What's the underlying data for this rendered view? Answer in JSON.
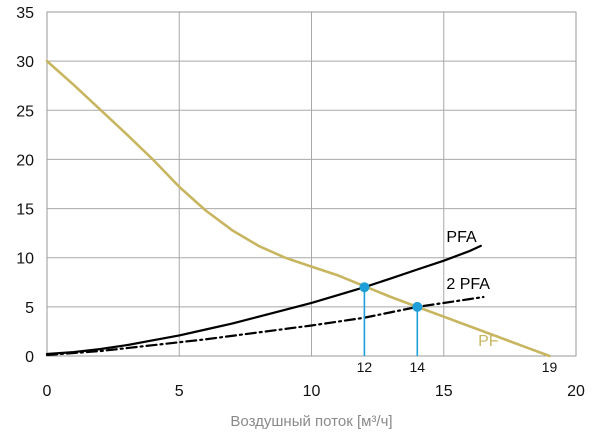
{
  "chart_data": {
    "type": "line",
    "title": "",
    "xlabel": "Воздушный поток [м³/ч]",
    "ylabel": "",
    "xlim": [
      0,
      20
    ],
    "ylim": [
      0,
      35
    ],
    "x_ticks": [
      "0",
      "5",
      "10",
      "15",
      "20"
    ],
    "y_ticks": [
      "0",
      "5",
      "10",
      "15",
      "20",
      "25",
      "30",
      "35"
    ],
    "grid": true,
    "series": [
      {
        "name": "PF",
        "color": "#c8b560",
        "style": "solid",
        "x": [
          0,
          1,
          2,
          3,
          4,
          5,
          6,
          7,
          8,
          9,
          10,
          11,
          12,
          13,
          14,
          15,
          16,
          17,
          18,
          19
        ],
        "y": [
          30,
          27.6,
          25.1,
          22.6,
          20.0,
          17.2,
          14.8,
          12.8,
          11.2,
          10.0,
          9.1,
          8.2,
          7.1,
          6.0,
          5.0,
          4.0,
          3.0,
          2.0,
          1.0,
          0
        ]
      },
      {
        "name": "PFA",
        "color": "#000000",
        "style": "solid",
        "x": [
          0,
          1,
          2,
          3,
          4,
          5,
          6,
          7,
          8,
          9,
          10,
          11,
          12,
          13,
          14,
          15,
          16,
          16.4
        ],
        "y": [
          0.2,
          0.4,
          0.7,
          1.1,
          1.6,
          2.1,
          2.7,
          3.3,
          4.0,
          4.7,
          5.4,
          6.2,
          7.0,
          7.9,
          8.8,
          9.7,
          10.7,
          11.2
        ]
      },
      {
        "name": "2 PFA",
        "color": "#000000",
        "style": "dashdot",
        "x": [
          0,
          2,
          4,
          6,
          8,
          10,
          12,
          14,
          16,
          16.5
        ],
        "y": [
          0.1,
          0.5,
          1.1,
          1.7,
          2.4,
          3.1,
          3.9,
          5.0,
          5.8,
          6.0
        ]
      }
    ],
    "operating_points": [
      {
        "x": 12,
        "y": 7,
        "label": "12",
        "color": "#1e9fd8"
      },
      {
        "x": 14,
        "y": 5,
        "label": "14",
        "color": "#1e9fd8"
      }
    ],
    "end_marker": {
      "x": 19,
      "label": "19"
    }
  }
}
